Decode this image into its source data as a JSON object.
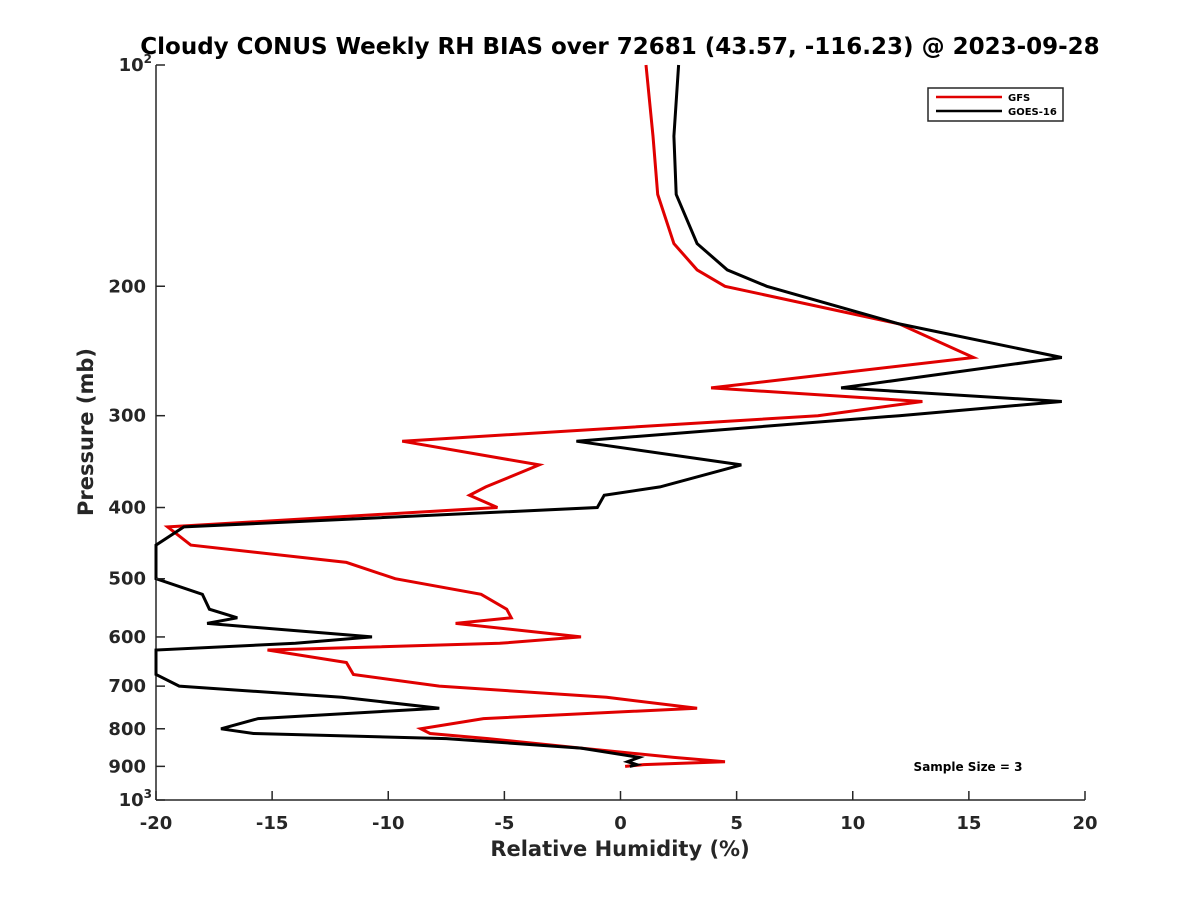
{
  "chart_data": {
    "type": "line",
    "title": "Cloudy CONUS Weekly RH BIAS over 72681 (43.57, -116.23) @ 2023-09-28",
    "xlabel": "Relative Humidity (%)",
    "ylabel": "Pressure (mb)",
    "xlim": [
      -20,
      20
    ],
    "ylim": [
      100,
      1000
    ],
    "y_scale": "log",
    "y_reversed": true,
    "grid": false,
    "legend_position": "top-right",
    "annotation": "Sample Size = 3",
    "x_ticks": [
      {
        "value": -20,
        "label": "-20"
      },
      {
        "value": -15,
        "label": "-15"
      },
      {
        "value": -10,
        "label": "-10"
      },
      {
        "value": -5,
        "label": "-5"
      },
      {
        "value": 0,
        "label": "0"
      },
      {
        "value": 5,
        "label": "5"
      },
      {
        "value": 10,
        "label": "10"
      },
      {
        "value": 15,
        "label": "15"
      },
      {
        "value": 20,
        "label": "20"
      }
    ],
    "y_ticks": [
      {
        "value": 100,
        "label": "10",
        "exp": "2"
      },
      {
        "value": 200,
        "label": "200"
      },
      {
        "value": 300,
        "label": "300"
      },
      {
        "value": 400,
        "label": "400"
      },
      {
        "value": 500,
        "label": "500"
      },
      {
        "value": 600,
        "label": "600"
      },
      {
        "value": 700,
        "label": "700"
      },
      {
        "value": 800,
        "label": "800"
      },
      {
        "value": 900,
        "label": "900"
      },
      {
        "value": 1000,
        "label": "10",
        "exp": "3"
      }
    ],
    "series": [
      {
        "name": "GFS",
        "color": "#e00000",
        "points": [
          [
            1.1,
            100
          ],
          [
            1.4,
            125
          ],
          [
            1.6,
            150
          ],
          [
            2.3,
            175
          ],
          [
            3.3,
            190
          ],
          [
            4.5,
            200
          ],
          [
            12.0,
            225
          ],
          [
            15.2,
            250
          ],
          [
            3.9,
            275
          ],
          [
            13.0,
            287
          ],
          [
            8.5,
            300
          ],
          [
            -9.4,
            325
          ],
          [
            -3.5,
            350
          ],
          [
            -5.8,
            375
          ],
          [
            -6.5,
            385
          ],
          [
            -5.3,
            400
          ],
          [
            -19.5,
            425
          ],
          [
            -18.5,
            450
          ],
          [
            -11.8,
            475
          ],
          [
            -9.7,
            500
          ],
          [
            -6.0,
            525
          ],
          [
            -4.9,
            550
          ],
          [
            -4.7,
            565
          ],
          [
            -7.1,
            575
          ],
          [
            -1.7,
            600
          ],
          [
            -5.2,
            612
          ],
          [
            -15.2,
            625
          ],
          [
            -11.8,
            650
          ],
          [
            -11.5,
            675
          ],
          [
            -7.8,
            700
          ],
          [
            -0.6,
            725
          ],
          [
            3.3,
            750
          ],
          [
            -5.9,
            775
          ],
          [
            -8.6,
            800
          ],
          [
            -8.2,
            812
          ],
          [
            -5.7,
            825
          ],
          [
            -1.7,
            850
          ],
          [
            2.3,
            875
          ],
          [
            4.5,
            887
          ],
          [
            1.0,
            895
          ],
          [
            0.2,
            900
          ]
        ]
      },
      {
        "name": "GOES-16",
        "color": "#000000",
        "points": [
          [
            2.5,
            100
          ],
          [
            2.3,
            125
          ],
          [
            2.4,
            150
          ],
          [
            3.3,
            175
          ],
          [
            4.6,
            190
          ],
          [
            6.3,
            200
          ],
          [
            12.0,
            225
          ],
          [
            19.0,
            250
          ],
          [
            9.5,
            275
          ],
          [
            19.0,
            287
          ],
          [
            12.0,
            300
          ],
          [
            -1.9,
            325
          ],
          [
            5.2,
            350
          ],
          [
            1.7,
            375
          ],
          [
            -0.7,
            385
          ],
          [
            -1.0,
            400
          ],
          [
            -18.8,
            425
          ],
          [
            -20.0,
            450
          ],
          [
            -20.0,
            475
          ],
          [
            -20.0,
            500
          ],
          [
            -18.0,
            525
          ],
          [
            -17.7,
            550
          ],
          [
            -16.5,
            565
          ],
          [
            -17.8,
            575
          ],
          [
            -10.7,
            600
          ],
          [
            -14.0,
            612
          ],
          [
            -20.0,
            625
          ],
          [
            -20.0,
            650
          ],
          [
            -20.0,
            675
          ],
          [
            -19.0,
            700
          ],
          [
            -12.0,
            725
          ],
          [
            -7.8,
            750
          ],
          [
            -15.6,
            775
          ],
          [
            -17.2,
            800
          ],
          [
            -15.8,
            812
          ],
          [
            -7.5,
            825
          ],
          [
            -1.7,
            850
          ],
          [
            0.8,
            875
          ],
          [
            0.3,
            887
          ],
          [
            0.7,
            895
          ],
          [
            0.4,
            900
          ]
        ]
      }
    ]
  }
}
